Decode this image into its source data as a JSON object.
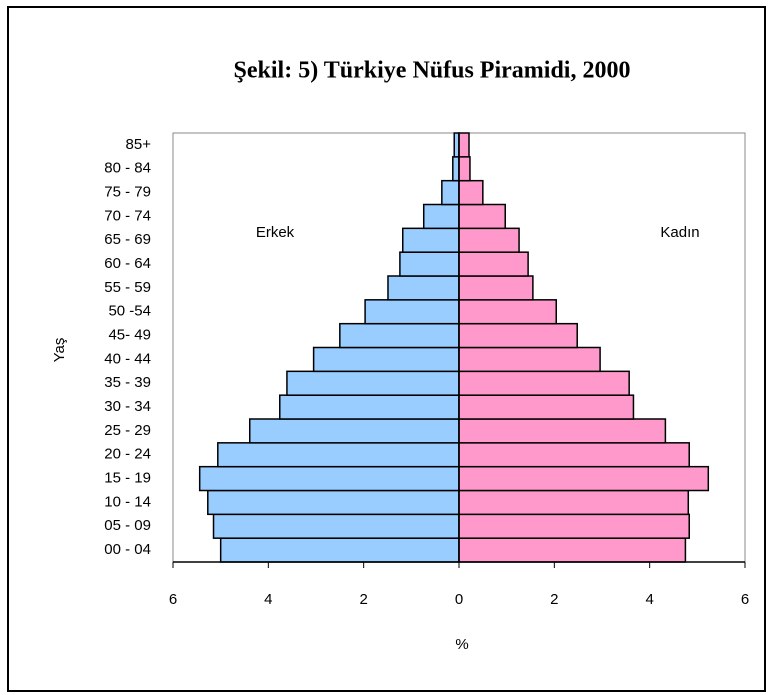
{
  "chart_data": {
    "type": "pyramid",
    "title": "Şekil: 5) Türkiye Nüfus Piramidi, 2000",
    "y_label": "Yaş",
    "x_label": "%",
    "annotations": [
      "Erkek",
      "Kadın"
    ],
    "categories": [
      "00 - 04",
      "05 - 09",
      "10 - 14",
      "15 - 19",
      "20 - 24",
      "25 - 29",
      "30 - 34",
      "35 - 39",
      "40 - 44",
      "45- 49",
      "50 -54",
      "55 - 59",
      "60 - 64",
      "65 - 69",
      "70 - 74",
      "75 - 79",
      "80 - 84",
      "85+"
    ],
    "series": [
      {
        "color": "#99ccff",
        "values": [
          -5.0,
          -5.15,
          -5.27,
          -5.44,
          -5.06,
          -4.39,
          -3.76,
          -3.61,
          -3.05,
          -2.5,
          -1.97,
          -1.49,
          -1.24,
          -1.18,
          -0.74,
          -0.36,
          -0.13,
          -0.1
        ]
      },
      {
        "color": "#ff99cc",
        "values": [
          4.75,
          4.83,
          4.81,
          5.23,
          4.83,
          4.33,
          3.66,
          3.57,
          2.96,
          2.48,
          2.04,
          1.55,
          1.45,
          1.26,
          0.97,
          0.5,
          0.23,
          0.21
        ]
      }
    ],
    "xlim": [
      -6,
      6
    ],
    "xticks": [
      {
        "value": -6,
        "label": "6"
      },
      {
        "value": -4,
        "label": "4"
      },
      {
        "value": -2,
        "label": "2"
      },
      0,
      2,
      4,
      6
    ]
  }
}
